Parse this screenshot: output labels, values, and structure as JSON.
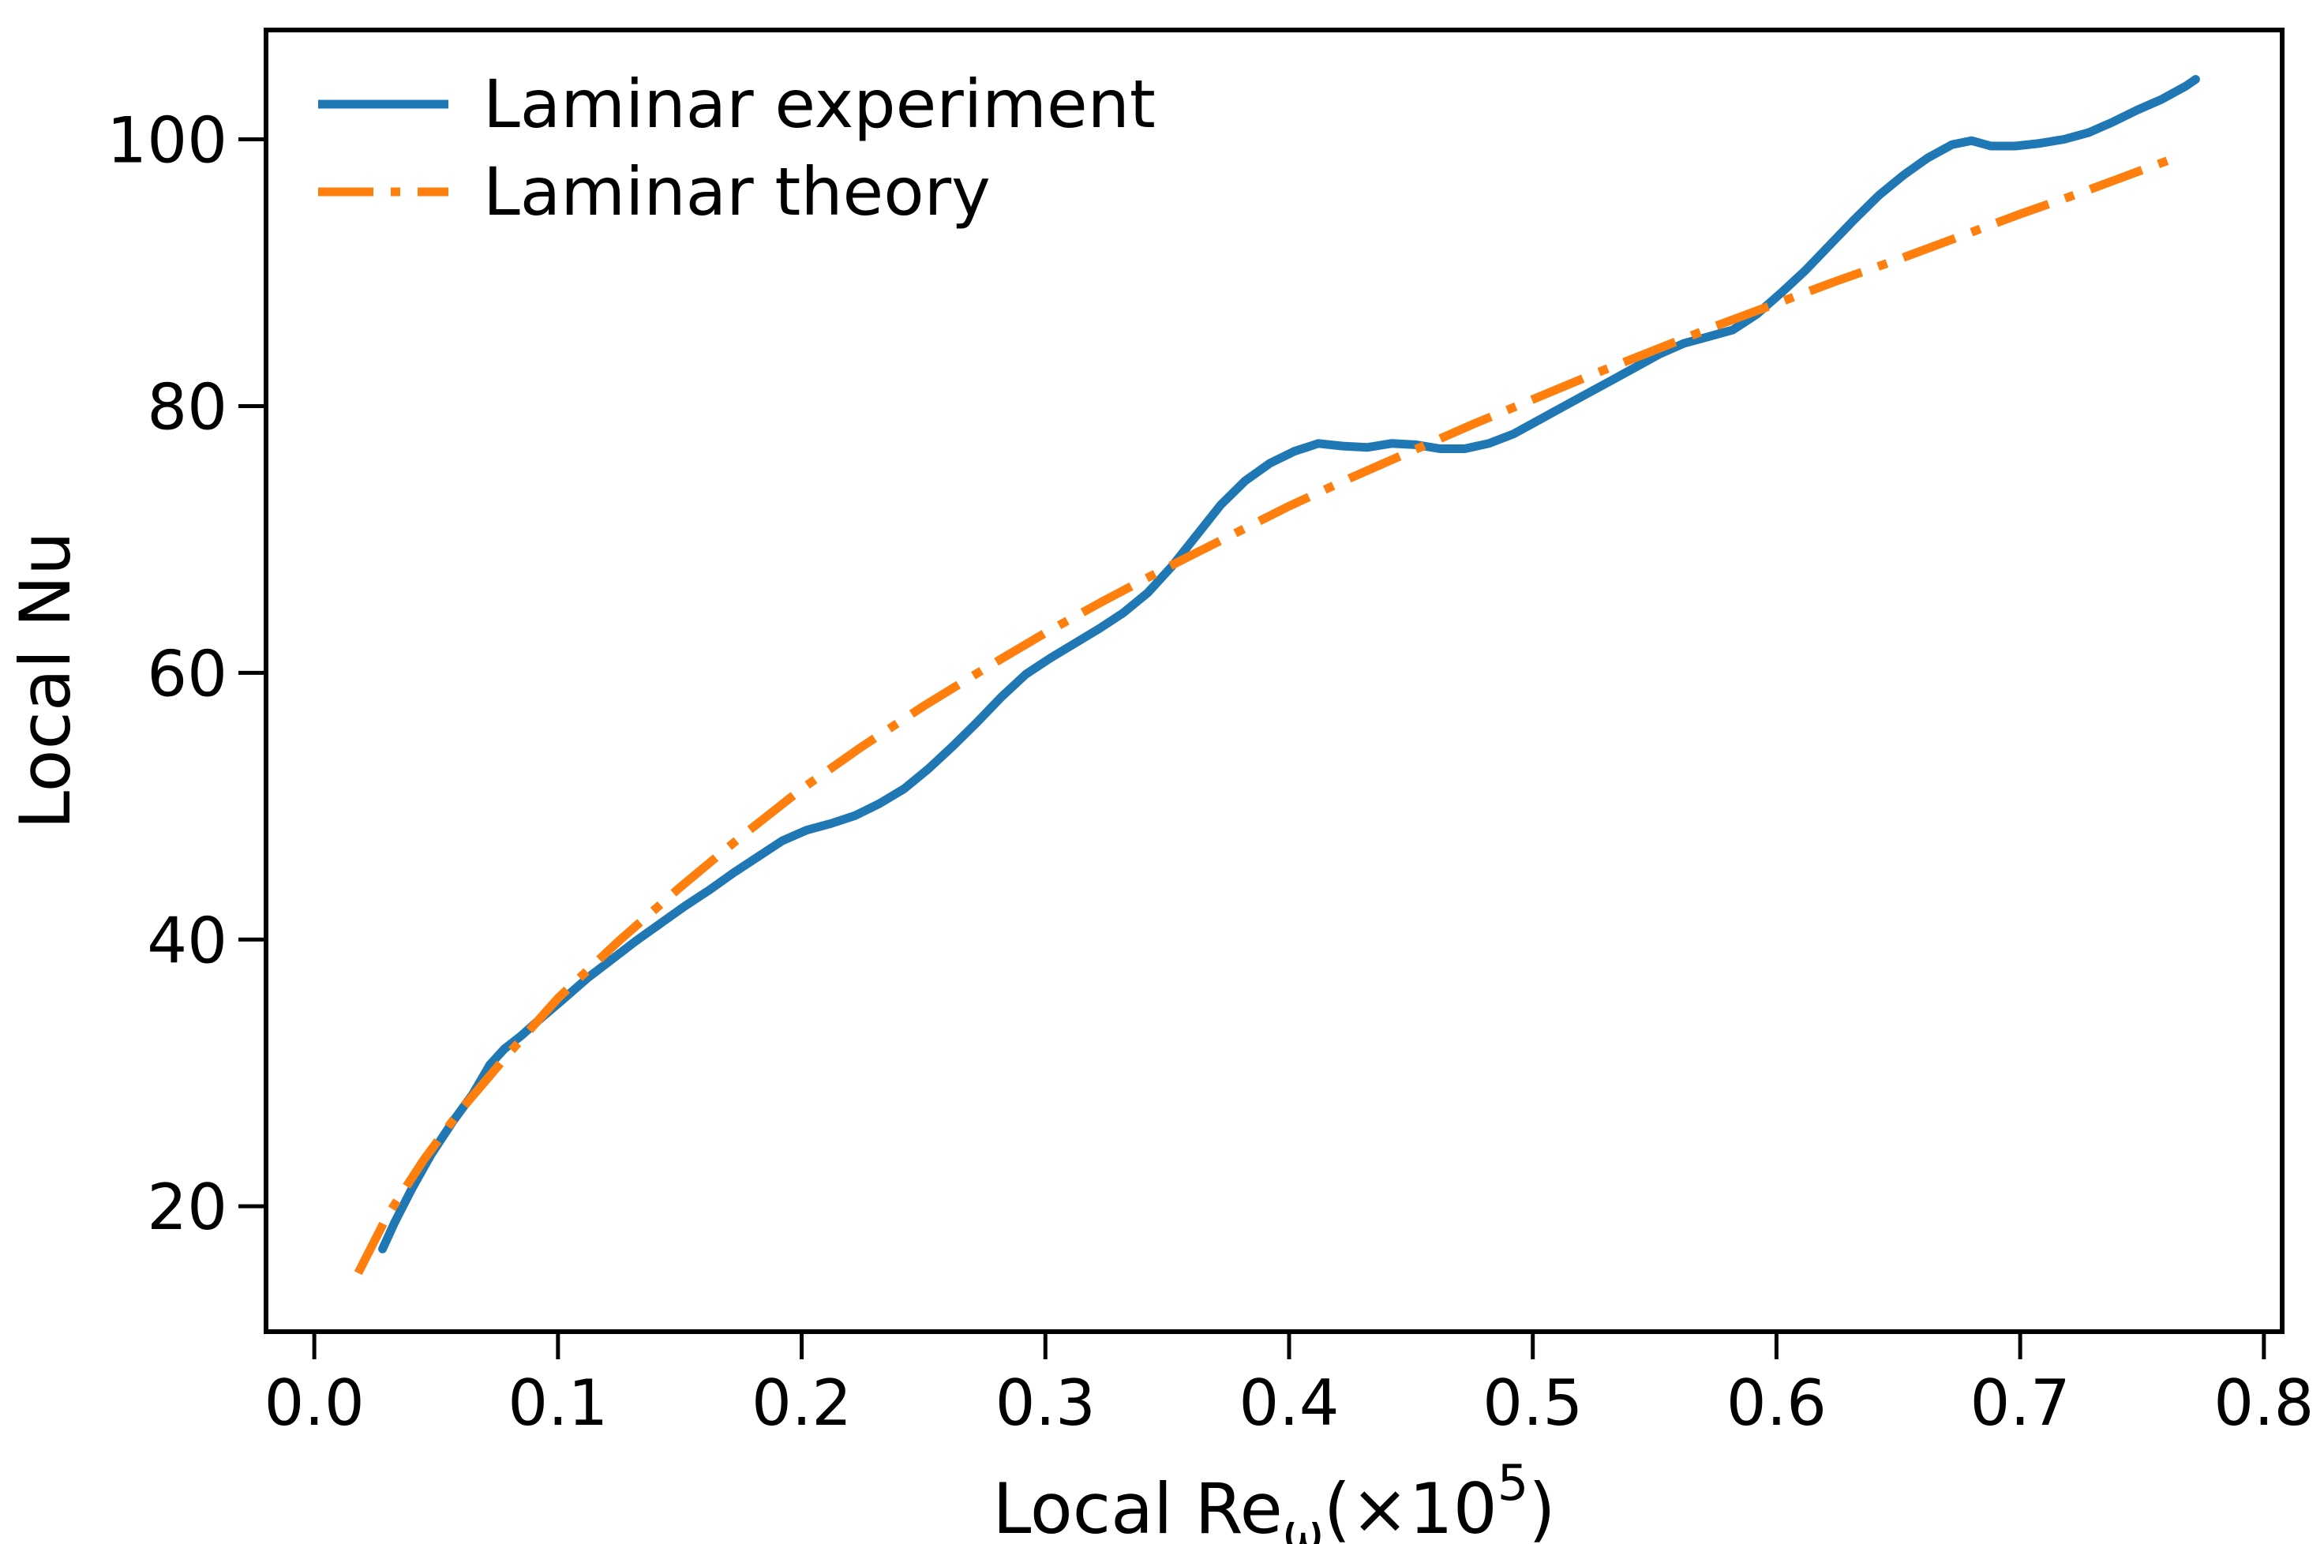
{
  "chart_data": {
    "type": "line",
    "title": "",
    "xlabel_text": "Local Re_w(x10^5)",
    "xlabel_parts": {
      "main": "Local Re",
      "sub": "ω",
      "mid": "(×10",
      "sup": "5",
      "end": ")"
    },
    "ylabel": "Local Nu",
    "xlim": [
      -0.0198,
      0.8075
    ],
    "ylim": [
      10.6,
      108.2
    ],
    "x_ticks": [
      0.0,
      0.1,
      0.2,
      0.3,
      0.4,
      0.5,
      0.6,
      0.7,
      0.8
    ],
    "x_tick_labels": [
      "0.0",
      "0.1",
      "0.2",
      "0.3",
      "0.4",
      "0.5",
      "0.6",
      "0.7",
      "0.8"
    ],
    "y_ticks": [
      20,
      40,
      60,
      80,
      100
    ],
    "y_tick_labels": [
      "20",
      "40",
      "60",
      "80",
      "100"
    ],
    "grid": false,
    "legend_position": "upper-left",
    "background_color": "#ffffff",
    "frame_color": "#000000",
    "text_color": "#000000",
    "series": [
      {
        "name": "Laminar experiment",
        "color": "#1f77b4",
        "style": "solid",
        "x": [
          0.028,
          0.033,
          0.04,
          0.048,
          0.057,
          0.065,
          0.072,
          0.078,
          0.085,
          0.093,
          0.102,
          0.112,
          0.122,
          0.132,
          0.142,
          0.152,
          0.162,
          0.172,
          0.182,
          0.192,
          0.202,
          0.212,
          0.222,
          0.232,
          0.242,
          0.252,
          0.262,
          0.272,
          0.282,
          0.292,
          0.302,
          0.312,
          0.322,
          0.332,
          0.342,
          0.352,
          0.362,
          0.372,
          0.382,
          0.392,
          0.402,
          0.412,
          0.422,
          0.432,
          0.442,
          0.452,
          0.462,
          0.472,
          0.482,
          0.492,
          0.502,
          0.512,
          0.522,
          0.532,
          0.542,
          0.552,
          0.562,
          0.572,
          0.582,
          0.592,
          0.602,
          0.612,
          0.622,
          0.632,
          0.642,
          0.652,
          0.662,
          0.672,
          0.68,
          0.688,
          0.698,
          0.708,
          0.718,
          0.728,
          0.738,
          0.748,
          0.758,
          0.768,
          0.772
        ],
        "y": [
          16.8,
          18.8,
          21.3,
          23.9,
          26.4,
          28.4,
          30.6,
          31.8,
          32.8,
          34.1,
          35.5,
          37.1,
          38.5,
          39.9,
          41.2,
          42.5,
          43.7,
          45.0,
          46.2,
          47.4,
          48.2,
          48.7,
          49.3,
          50.2,
          51.3,
          52.8,
          54.5,
          56.3,
          58.2,
          59.9,
          61.1,
          62.2,
          63.3,
          64.5,
          66.0,
          68.0,
          70.3,
          72.6,
          74.4,
          75.7,
          76.6,
          77.2,
          77.0,
          76.9,
          77.2,
          77.1,
          76.8,
          76.8,
          77.2,
          77.9,
          78.9,
          79.9,
          80.9,
          81.9,
          82.9,
          83.9,
          84.7,
          85.2,
          85.7,
          86.9,
          88.5,
          90.2,
          92.1,
          94.0,
          95.8,
          97.3,
          98.6,
          99.6,
          99.9,
          99.5,
          99.5,
          99.7,
          100.0,
          100.5,
          101.3,
          102.2,
          103.0,
          104.0,
          104.5
        ]
      },
      {
        "name": "Laminar theory",
        "color": "#ff7f0e",
        "style": "dashdot",
        "x": [
          0.018,
          0.03,
          0.045,
          0.06,
          0.08,
          0.1,
          0.125,
          0.15,
          0.175,
          0.2,
          0.225,
          0.25,
          0.275,
          0.3,
          0.325,
          0.35,
          0.375,
          0.4,
          0.425,
          0.45,
          0.475,
          0.5,
          0.525,
          0.55,
          0.575,
          0.6,
          0.625,
          0.65,
          0.675,
          0.7,
          0.725,
          0.75,
          0.765
        ],
        "y": [
          15.0,
          19.3,
          23.5,
          27.2,
          31.5,
          35.6,
          39.9,
          43.9,
          47.7,
          51.3,
          54.5,
          57.5,
          60.3,
          63.0,
          65.5,
          67.9,
          70.2,
          72.5,
          74.6,
          76.6,
          78.6,
          80.5,
          82.4,
          84.2,
          86.0,
          87.7,
          89.4,
          91.0,
          92.7,
          94.4,
          96.0,
          97.7,
          98.7
        ]
      }
    ]
  }
}
